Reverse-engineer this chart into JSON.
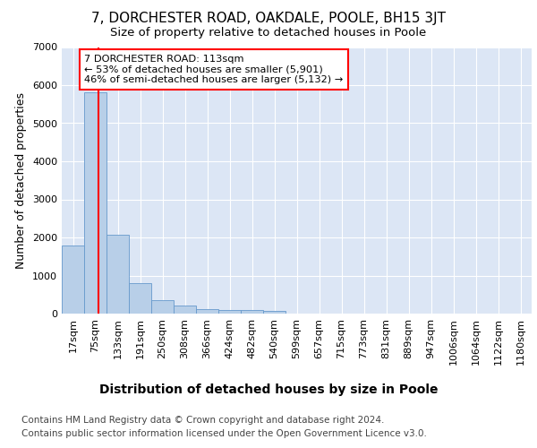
{
  "title": "7, DORCHESTER ROAD, OAKDALE, POOLE, BH15 3JT",
  "subtitle": "Size of property relative to detached houses in Poole",
  "xlabel": "Distribution of detached houses by size in Poole",
  "ylabel": "Number of detached properties",
  "footer_line1": "Contains HM Land Registry data © Crown copyright and database right 2024.",
  "footer_line2": "Contains public sector information licensed under the Open Government Licence v3.0.",
  "categories": [
    "17sqm",
    "75sqm",
    "133sqm",
    "191sqm",
    "250sqm",
    "308sqm",
    "366sqm",
    "424sqm",
    "482sqm",
    "540sqm",
    "599sqm",
    "657sqm",
    "715sqm",
    "773sqm",
    "831sqm",
    "889sqm",
    "947sqm",
    "1006sqm",
    "1064sqm",
    "1122sqm",
    "1180sqm"
  ],
  "values": [
    1780,
    5800,
    2080,
    800,
    360,
    220,
    110,
    100,
    95,
    75,
    0,
    0,
    0,
    0,
    0,
    0,
    0,
    0,
    0,
    0,
    0
  ],
  "bar_color": "#b8cfe8",
  "bar_edge_color": "#6699cc",
  "vline_color": "red",
  "annotation_label": "7 DORCHESTER ROAD: 113sqm",
  "annotation_line1": "← 53% of detached houses are smaller (5,901)",
  "annotation_line2": "46% of semi-detached houses are larger (5,132) →",
  "annotation_box_color": "white",
  "annotation_box_edge_color": "red",
  "ylim": [
    0,
    7000
  ],
  "yticks": [
    0,
    1000,
    2000,
    3000,
    4000,
    5000,
    6000,
    7000
  ],
  "plot_bg_color": "#dce6f5",
  "grid_color": "white",
  "title_fontsize": 11,
  "subtitle_fontsize": 9.5,
  "xlabel_fontsize": 10,
  "ylabel_fontsize": 9,
  "tick_fontsize": 8,
  "footer_fontsize": 7.5
}
